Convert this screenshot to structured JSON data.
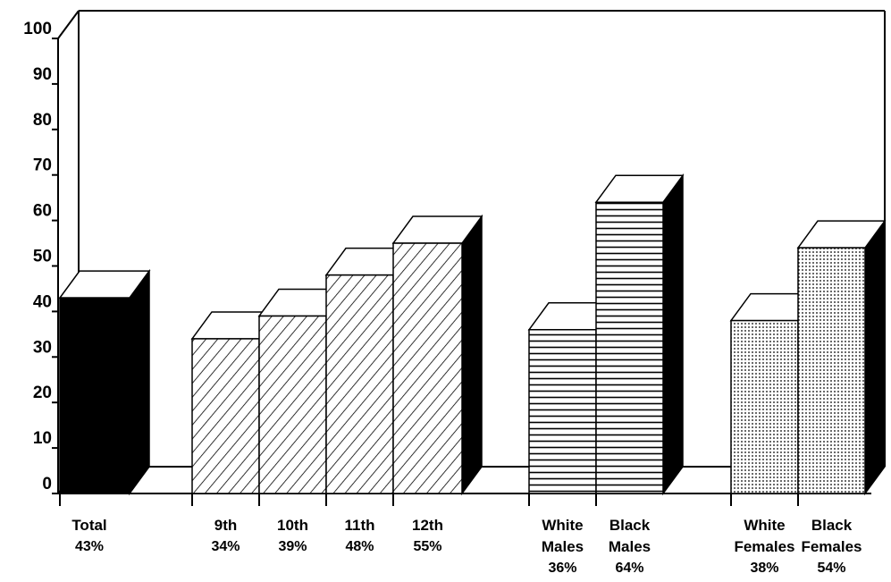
{
  "chart_data": {
    "type": "bar3d",
    "categories": [
      "Total",
      "9th",
      "10th",
      "11th",
      "12th",
      "White Males",
      "Black Males",
      "White Females",
      "Black Females"
    ],
    "values": [
      43,
      34,
      39,
      48,
      55,
      36,
      64,
      38,
      54
    ],
    "value_labels": [
      "43%",
      "34%",
      "39%",
      "48%",
      "55%",
      "36%",
      "64%",
      "38%",
      "54%"
    ],
    "patterns": [
      "solid",
      "diagonal",
      "diagonal",
      "diagonal",
      "diagonal",
      "horizontal",
      "horizontal",
      "dots",
      "dots"
    ],
    "ylim": [
      0,
      100
    ],
    "yticks": [
      0,
      10,
      20,
      30,
      40,
      50,
      60,
      70,
      80,
      90,
      100
    ]
  }
}
